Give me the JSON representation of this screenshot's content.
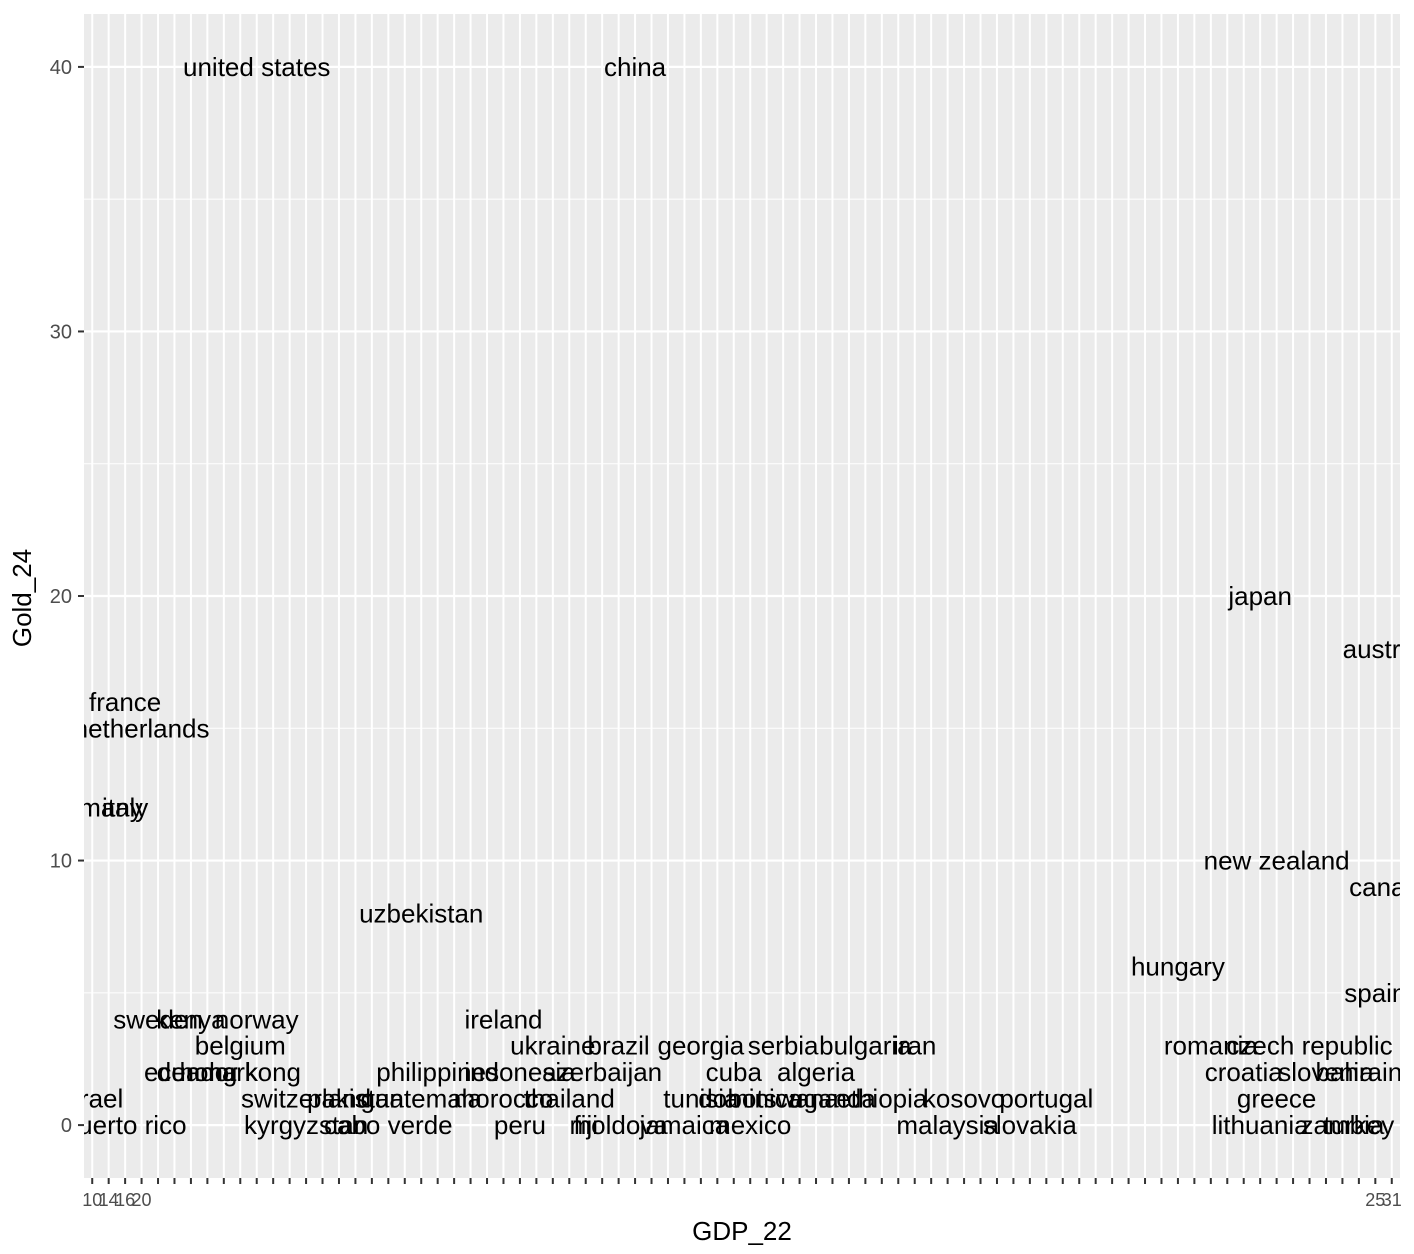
{
  "chart_data": {
    "type": "scatter",
    "marker": "text-label",
    "xlabel": "GDP_22",
    "ylabel": "Gold_24",
    "ylim": [
      -2,
      42
    ],
    "y_ticks": [
      0,
      10,
      20,
      30,
      40
    ],
    "x_axis_kind": "discrete-categories-crowded",
    "x_category_count": 80,
    "x_tick_labels_visible": [
      "10",
      "14",
      "16",
      "20",
      "25",
      "31"
    ],
    "grid": true,
    "legend": "none",
    "colors": {
      "panel": "#ebebeb",
      "grid": "#ffffff",
      "tick_text": "#4d4d4d",
      "label_text": "#000000"
    },
    "points": [
      {
        "label": "united states",
        "x_rank": 10,
        "y": 40
      },
      {
        "label": "china",
        "x_rank": 33,
        "y": 40
      },
      {
        "label": "japan",
        "x_rank": 71,
        "y": 20
      },
      {
        "label": "australia",
        "x_rank": 79,
        "y": 18
      },
      {
        "label": "france",
        "x_rank": 2,
        "y": 16
      },
      {
        "label": "netherlands",
        "x_rank": 3,
        "y": 15
      },
      {
        "label": "germany",
        "x_rank": 0,
        "y": 12
      },
      {
        "label": "italy",
        "x_rank": 2,
        "y": 12
      },
      {
        "label": "new zealand",
        "x_rank": 72,
        "y": 10
      },
      {
        "label": "canada",
        "x_rank": 79,
        "y": 9
      },
      {
        "label": "uzbekistan",
        "x_rank": 20,
        "y": 8
      },
      {
        "label": "hungary",
        "x_rank": 66,
        "y": 6
      },
      {
        "label": "spain",
        "x_rank": 78,
        "y": 5
      },
      {
        "label": "sweden",
        "x_rank": 4,
        "y": 4
      },
      {
        "label": "kenya",
        "x_rank": 6,
        "y": 4
      },
      {
        "label": "norway",
        "x_rank": 10,
        "y": 4
      },
      {
        "label": "ireland",
        "x_rank": 25,
        "y": 4
      },
      {
        "label": "belgium",
        "x_rank": 9,
        "y": 3
      },
      {
        "label": "ukraine",
        "x_rank": 28,
        "y": 3
      },
      {
        "label": "brazil",
        "x_rank": 32,
        "y": 3
      },
      {
        "label": "georgia",
        "x_rank": 37,
        "y": 3
      },
      {
        "label": "serbia",
        "x_rank": 42,
        "y": 3
      },
      {
        "label": "bulgaria",
        "x_rank": 47,
        "y": 3
      },
      {
        "label": "iran",
        "x_rank": 50,
        "y": 3
      },
      {
        "label": "romania",
        "x_rank": 68,
        "y": 3
      },
      {
        "label": "czech republic",
        "x_rank": 74,
        "y": 3
      },
      {
        "label": "ecuador",
        "x_rank": 6,
        "y": 2
      },
      {
        "label": "denmark",
        "x_rank": 7,
        "y": 2
      },
      {
        "label": "hong kong",
        "x_rank": 9,
        "y": 2
      },
      {
        "label": "philippines",
        "x_rank": 21,
        "y": 2
      },
      {
        "label": "indonesia",
        "x_rank": 26,
        "y": 2
      },
      {
        "label": "azerbaijan",
        "x_rank": 31,
        "y": 2
      },
      {
        "label": "cuba",
        "x_rank": 39,
        "y": 2
      },
      {
        "label": "algeria",
        "x_rank": 44,
        "y": 2
      },
      {
        "label": "croatia",
        "x_rank": 70,
        "y": 2
      },
      {
        "label": "slovenia",
        "x_rank": 75,
        "y": 2
      },
      {
        "label": "bahrain",
        "x_rank": 77,
        "y": 2
      },
      {
        "label": "israel",
        "x_rank": 0,
        "y": 1
      },
      {
        "label": "switzerland",
        "x_rank": 13,
        "y": 1
      },
      {
        "label": "pakistan",
        "x_rank": 16,
        "y": 1
      },
      {
        "label": "guatemala",
        "x_rank": 20,
        "y": 1
      },
      {
        "label": "morocco",
        "x_rank": 25,
        "y": 1
      },
      {
        "label": "thailand",
        "x_rank": 29,
        "y": 1
      },
      {
        "label": "tunisia",
        "x_rank": 37,
        "y": 1
      },
      {
        "label": "dominica",
        "x_rank": 40,
        "y": 1
      },
      {
        "label": "botswana",
        "x_rank": 42,
        "y": 1
      },
      {
        "label": "uganda",
        "x_rank": 45,
        "y": 1
      },
      {
        "label": "ethiopia",
        "x_rank": 48,
        "y": 1
      },
      {
        "label": "kosovo",
        "x_rank": 53,
        "y": 1
      },
      {
        "label": "portugal",
        "x_rank": 58,
        "y": 1
      },
      {
        "label": "greece",
        "x_rank": 72,
        "y": 1
      },
      {
        "label": "puerto rico",
        "x_rank": 2,
        "y": 0
      },
      {
        "label": "kyrgyzstan",
        "x_rank": 13,
        "y": 0
      },
      {
        "label": "cabo verde",
        "x_rank": 18,
        "y": 0
      },
      {
        "label": "peru",
        "x_rank": 26,
        "y": 0
      },
      {
        "label": "fiji",
        "x_rank": 30,
        "y": 0
      },
      {
        "label": "moldova",
        "x_rank": 32,
        "y": 0
      },
      {
        "label": "jamaica",
        "x_rank": 36,
        "y": 0
      },
      {
        "label": "mexico",
        "x_rank": 40,
        "y": 0
      },
      {
        "label": "malaysia",
        "x_rank": 52,
        "y": 0
      },
      {
        "label": "slovakia",
        "x_rank": 57,
        "y": 0
      },
      {
        "label": "lithuania",
        "x_rank": 71,
        "y": 0
      },
      {
        "label": "turkey",
        "x_rank": 77,
        "y": 0
      },
      {
        "label": "zambia",
        "x_rank": 76,
        "y": 0
      }
    ]
  }
}
